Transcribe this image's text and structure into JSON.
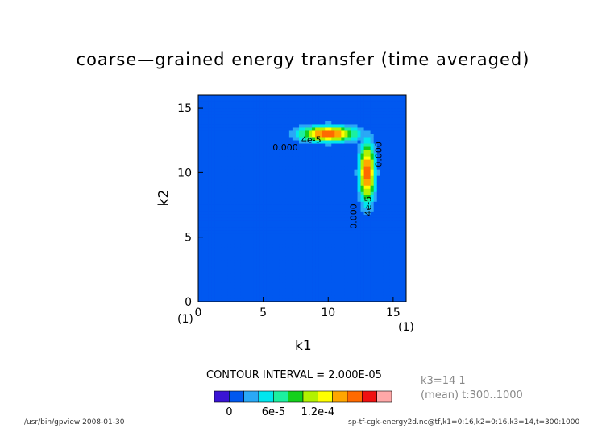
{
  "page": {
    "title": "coarse—grained energy transfer (time averaged)",
    "contour_interval": "CONTOUR INTERVAL = 2.000E-05",
    "meta_line1": "k3=14  1",
    "meta_line2": "(mean) t:300..1000",
    "footer_left": "/usr/bin/gpview   2008-01-30",
    "footer_right": "sp-tf-cgk-energy2d.nc@tf,k1=0:16,k2=0:16,k3=14,t=300:1000"
  },
  "colors": {
    "levels": [
      "#3a14d4",
      "#0058f0",
      "#2aa8f6",
      "#00e6ee",
      "#1cf0a0",
      "#14d01c",
      "#b2f200",
      "#ffff00",
      "#ffa600",
      "#ff6a00",
      "#f01010",
      "#ffa8a8"
    ]
  },
  "chart_data": {
    "type": "contour",
    "xlabel": "k1",
    "ylabel": "k2",
    "xlim": [
      0,
      16
    ],
    "ylim": [
      0,
      16
    ],
    "xticks": [
      "0",
      "5",
      "10",
      "15"
    ],
    "yticks": [
      "0",
      "5",
      "10",
      "15"
    ],
    "x_origin_index": "(1)",
    "x_end_index": "(1)",
    "contour_interval": 2e-05,
    "colorbar_ticks": [
      "0",
      "6e-5",
      "1.2e-4"
    ],
    "contour_labels": [
      {
        "text": "4e-5",
        "k1": 8.7,
        "k2": 12.3
      },
      {
        "text": "0.000",
        "k1": 6.7,
        "k2": 11.7
      },
      {
        "text": "4e-5",
        "k1": 13.3,
        "k2": 7.4
      },
      {
        "text": "0.000",
        "k1": 12.2,
        "k2": 6.6
      },
      {
        "text": "0.000",
        "k1": 14.1,
        "k2": 11.4
      }
    ],
    "field_description": "energy transfer peaks near (k1,k2)=(10,13) and (13,10), ~1.4e-4; near-zero elsewhere",
    "peaks": [
      {
        "k1": 10,
        "k2": 13,
        "value": 0.00014
      },
      {
        "k1": 13,
        "k2": 10,
        "value": 0.00014
      }
    ]
  }
}
